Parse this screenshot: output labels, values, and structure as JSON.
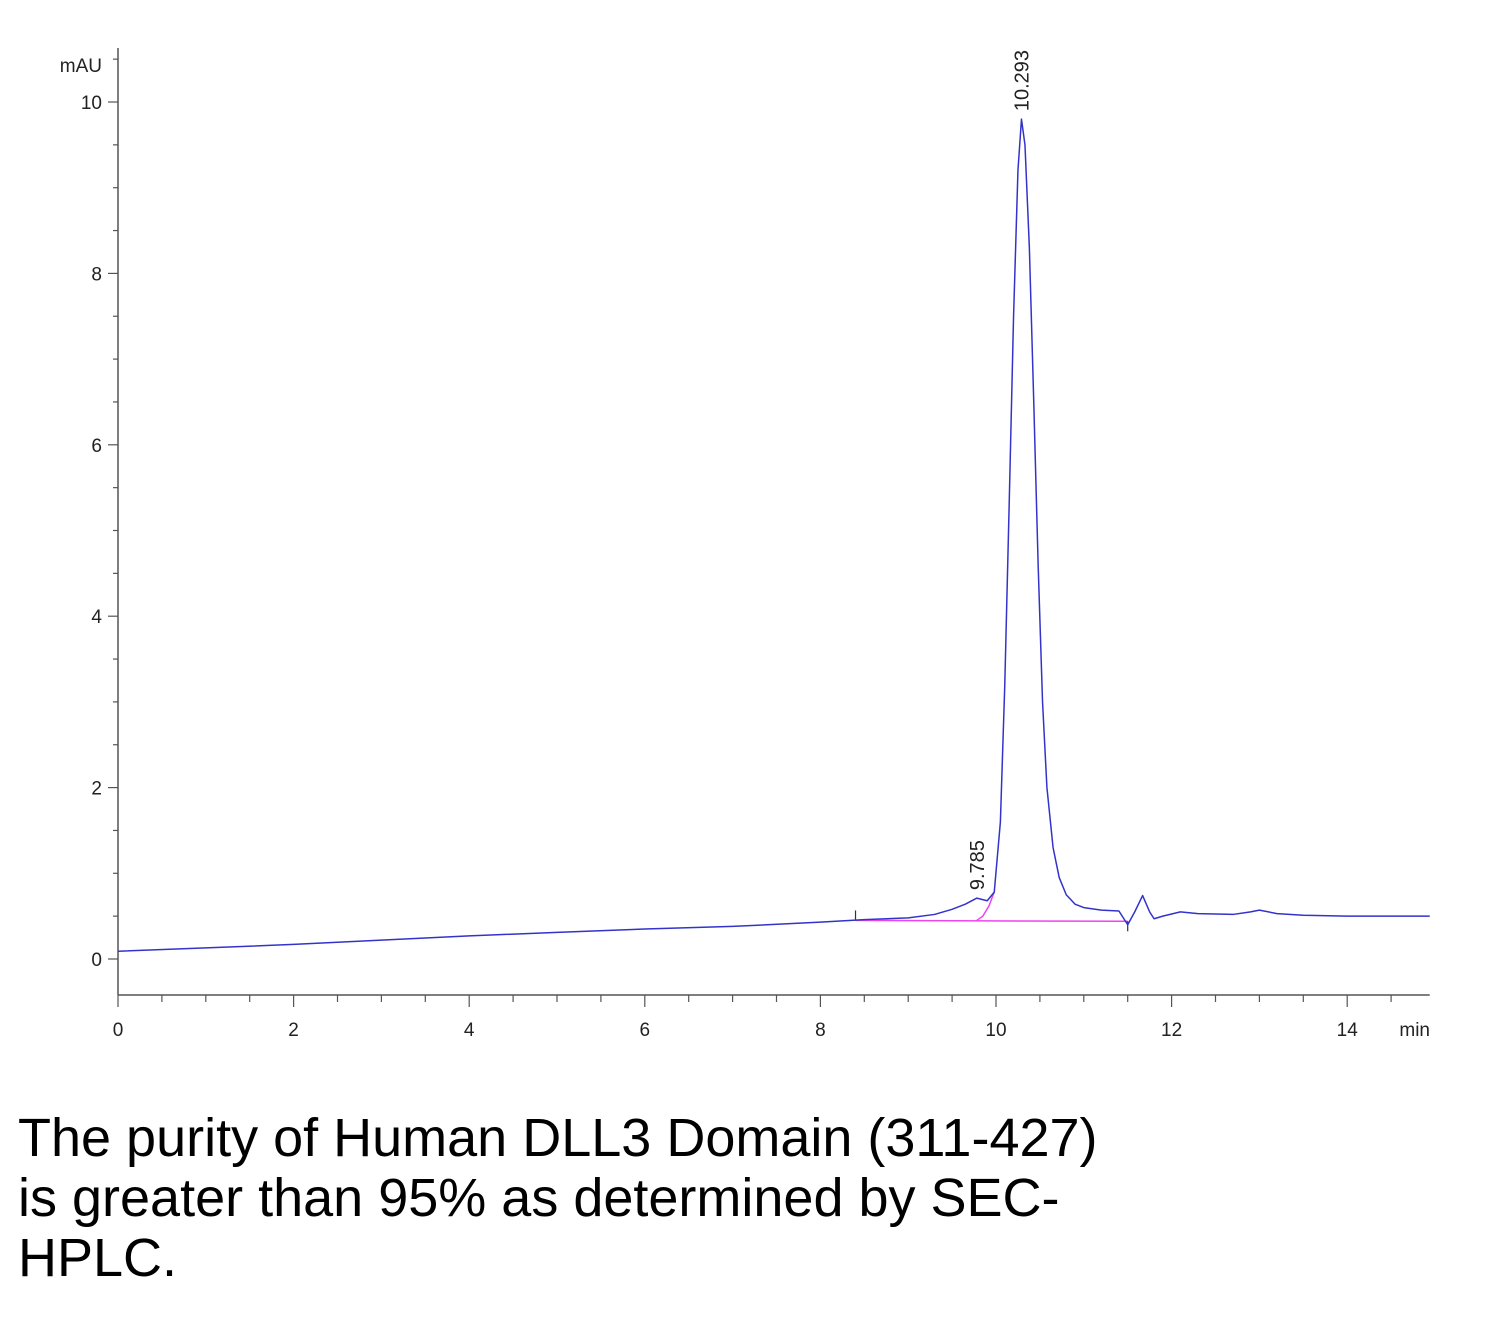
{
  "chart_data": {
    "type": "line",
    "title": "",
    "xlabel": "min",
    "ylabel": "mAU",
    "xlim": [
      0,
      14.94
    ],
    "ylim": [
      -0.42,
      10.63
    ],
    "x_ticks_major": [
      0,
      2,
      4,
      6,
      8,
      10,
      12,
      14
    ],
    "y_ticks_major": [
      0,
      2,
      4,
      6,
      8,
      10
    ],
    "x_minor_step": 0.5,
    "y_minor_step": 0.5,
    "grid": false,
    "series": [
      {
        "color": "#3333cc",
        "x": [
          0,
          1,
          2,
          3,
          4,
          5,
          6,
          7,
          8,
          8.5,
          9,
          9.3,
          9.5,
          9.65,
          9.78,
          9.9,
          9.98,
          10.05,
          10.1,
          10.15,
          10.2,
          10.25,
          10.29,
          10.33,
          10.38,
          10.43,
          10.48,
          10.53,
          10.58,
          10.65,
          10.72,
          10.8,
          10.9,
          11.0,
          11.2,
          11.4,
          11.5,
          11.58,
          11.67,
          11.75,
          11.8,
          11.9,
          12.1,
          12.3,
          12.7,
          12.9,
          13.0,
          13.2,
          13.5,
          14,
          14.5,
          14.94
        ],
        "y": [
          0.09,
          0.13,
          0.17,
          0.22,
          0.27,
          0.31,
          0.35,
          0.38,
          0.43,
          0.46,
          0.48,
          0.52,
          0.58,
          0.64,
          0.71,
          0.68,
          0.78,
          1.6,
          3.2,
          5.3,
          7.5,
          9.2,
          9.8,
          9.5,
          8.3,
          6.5,
          4.6,
          3.0,
          2.0,
          1.3,
          0.95,
          0.75,
          0.64,
          0.6,
          0.57,
          0.56,
          0.4,
          0.55,
          0.74,
          0.55,
          0.47,
          0.5,
          0.55,
          0.53,
          0.52,
          0.55,
          0.57,
          0.53,
          0.51,
          0.5,
          0.5,
          0.5
        ]
      }
    ],
    "integration_baseline": {
      "color": "#ee44ee",
      "x": [
        8.4,
        11.5
      ],
      "y": [
        0.45,
        0.44
      ]
    },
    "peak_split": {
      "color": "#ee44ee",
      "x": [
        9.78,
        9.85,
        9.92,
        9.98
      ],
      "y": [
        0.45,
        0.5,
        0.62,
        0.78
      ]
    },
    "peak_labels": [
      {
        "x": 9.785,
        "y": 0.71,
        "text": "9.785"
      },
      {
        "x": 10.293,
        "y": 9.8,
        "text": "10.293"
      }
    ]
  },
  "caption": {
    "lines": [
      "The purity of Human DLL3 Domain (311-427)",
      "is greater than 95% as determined by SEC-",
      "HPLC."
    ]
  }
}
